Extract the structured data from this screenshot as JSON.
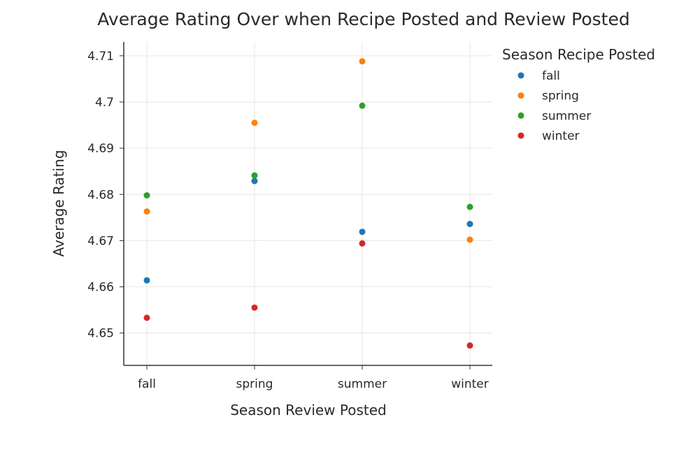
{
  "chart_data": {
    "type": "scatter",
    "title": "Average Rating Over when Recipe Posted and Review Posted",
    "xlabel": "Season Review Posted",
    "ylabel": "Average Rating",
    "categories": [
      "fall",
      "spring",
      "summer",
      "winter"
    ],
    "ylim": [
      4.643,
      4.713
    ],
    "y_ticks": [
      4.65,
      4.66,
      4.67,
      4.68,
      4.69,
      4.7,
      4.71
    ],
    "y_tick_labels": [
      "4.65",
      "4.66",
      "4.67",
      "4.68",
      "4.69",
      "4.7",
      "4.71"
    ],
    "grid": true,
    "legend": {
      "title": "Season Recipe Posted",
      "placement": "top-right"
    },
    "series": [
      {
        "name": "fall",
        "color": "#1f77b4",
        "values": [
          4.6614,
          4.6829,
          4.6719,
          4.6736
        ]
      },
      {
        "name": "spring",
        "color": "#ff7f0e",
        "values": [
          4.6763,
          4.6955,
          4.7088,
          4.6702
        ]
      },
      {
        "name": "summer",
        "color": "#2ca02c",
        "values": [
          4.6798,
          4.6841,
          4.6992,
          4.6773
        ]
      },
      {
        "name": "winter",
        "color": "#d62728",
        "values": [
          4.6533,
          4.6555,
          4.6694,
          4.6473
        ]
      }
    ]
  }
}
